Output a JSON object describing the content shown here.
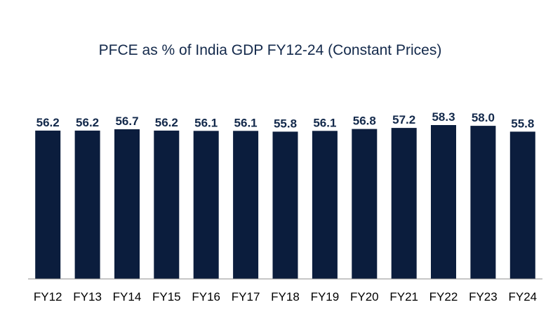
{
  "chart_data": {
    "type": "bar",
    "title": "PFCE as % of India GDP FY12-24 (Constant Prices)",
    "categories": [
      "FY12",
      "FY13",
      "FY14",
      "FY15",
      "FY16",
      "FY17",
      "FY18",
      "FY19",
      "FY20",
      "FY21",
      "FY22",
      "FY23",
      "FY24"
    ],
    "values": [
      56.2,
      56.2,
      56.7,
      56.2,
      56.1,
      56.1,
      55.8,
      56.1,
      56.8,
      57.2,
      58.3,
      58.0,
      55.8
    ],
    "value_labels": [
      "56.2",
      "56.2",
      "56.7",
      "56.2",
      "56.1",
      "56.1",
      "55.8",
      "56.1",
      "56.8",
      "57.2",
      "58.3",
      "58.0",
      "55.8"
    ],
    "xlabel": "",
    "ylabel": "",
    "ylim": [
      0,
      58.3
    ],
    "grid": false,
    "legend": "none",
    "bar_color": "#0b1d3d",
    "label_color": "#13294b"
  }
}
